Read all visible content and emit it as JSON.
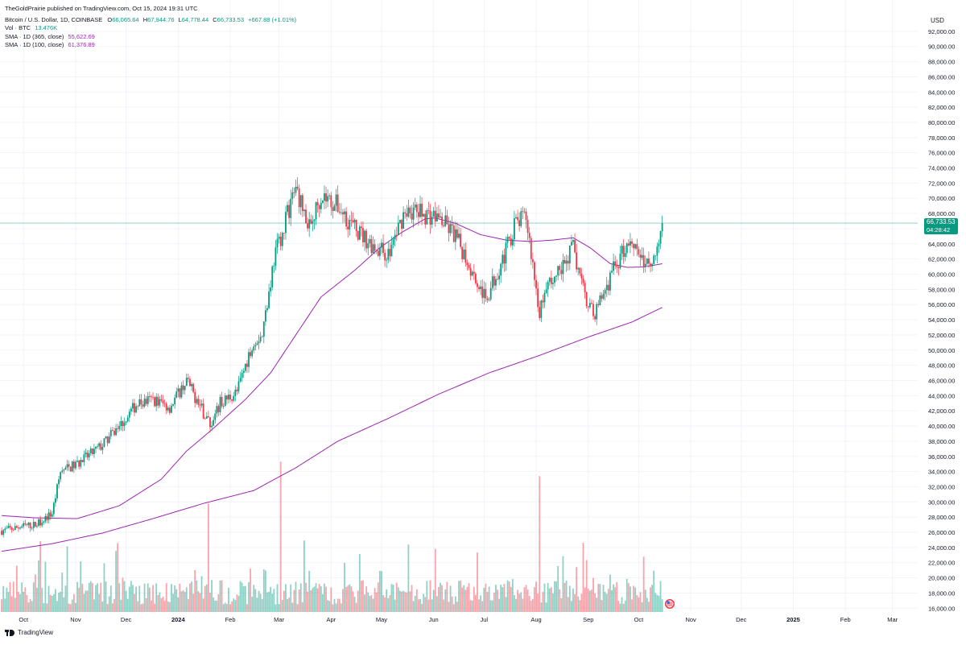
{
  "header": {
    "published": "TheGoldPrairie published on TradingView.com, Oct 15, 2024 19:31 UTC",
    "symbol": "Bitcoin / U.S. Dollar, 1D, COINBASE",
    "o_label": "O",
    "o_value": "66,065.64",
    "h_label": "H",
    "h_value": "67,944.76",
    "l_label": "L",
    "l_value": "64,778.44",
    "c_label": "C",
    "c_value": "66,733.53",
    "change": "+667.88 (+1.01%)",
    "vol_label": "Vol · BTC",
    "vol_value": "13.476K",
    "sma365_label": "SMA · 1D (365, close)",
    "sma365_value": "55,622.69",
    "sma100_label": "SMA · 1D (100, close)",
    "sma100_value": "61,376.89"
  },
  "footer": {
    "brand": "TradingView"
  },
  "colors": {
    "up": "#089981",
    "down": "#f23645",
    "sma": "#9c27b0",
    "grid": "#f0f3fa",
    "price_line": "#089981"
  },
  "chart_data": {
    "type": "candlestick",
    "title": "Bitcoin / U.S. Dollar, 1D, COINBASE",
    "currency": "USD",
    "ylim": [
      15500,
      94000
    ],
    "y_ticks": [
      16000,
      18000,
      20000,
      22000,
      24000,
      26000,
      28000,
      30000,
      32000,
      34000,
      36000,
      38000,
      40000,
      42000,
      44000,
      46000,
      48000,
      50000,
      52000,
      54000,
      56000,
      58000,
      60000,
      62000,
      64000,
      66000,
      68000,
      70000,
      72000,
      74000,
      76000,
      78000,
      80000,
      82000,
      84000,
      86000,
      88000,
      90000,
      92000
    ],
    "y_tick_labels": [
      "16,000.00",
      "18,000.00",
      "20,000.00",
      "22,000.00",
      "24,000.00",
      "26,000.00",
      "28,000.00",
      "30,000.00",
      "32,000.00",
      "34,000.00",
      "36,000.00",
      "38,000.00",
      "40,000.00",
      "42,000.00",
      "44,000.00",
      "46,000.00",
      "48,000.00",
      "50,000.00",
      "52,000.00",
      "54,000.00",
      "56,000.00",
      "58,000.00",
      "60,000.00",
      "62,000.00",
      "64,000.00",
      "66,000.00",
      "68,000.00",
      "70,000.00",
      "72,000.00",
      "74,000.00",
      "76,000.00",
      "78,000.00",
      "80,000.00",
      "82,000.00",
      "84,000.00",
      "86,000.00",
      "88,000.00",
      "90,000.00",
      "92,000.00"
    ],
    "x_ticks": [
      {
        "label": "Oct",
        "day": 13,
        "bold": false
      },
      {
        "label": "Nov",
        "day": 44,
        "bold": false
      },
      {
        "label": "Dec",
        "day": 74,
        "bold": false
      },
      {
        "label": "2024",
        "day": 105,
        "bold": true
      },
      {
        "label": "Feb",
        "day": 136,
        "bold": false
      },
      {
        "label": "Mar",
        "day": 165,
        "bold": false
      },
      {
        "label": "Apr",
        "day": 196,
        "bold": false
      },
      {
        "label": "May",
        "day": 226,
        "bold": false
      },
      {
        "label": "Jun",
        "day": 257,
        "bold": false
      },
      {
        "label": "Jul",
        "day": 287,
        "bold": false
      },
      {
        "label": "Aug",
        "day": 318,
        "bold": false
      },
      {
        "label": "Sep",
        "day": 349,
        "bold": false
      },
      {
        "label": "Oct",
        "day": 379,
        "bold": false
      },
      {
        "label": "Nov",
        "day": 410,
        "bold": false
      },
      {
        "label": "Dec",
        "day": 440,
        "bold": false
      },
      {
        "label": "2025",
        "day": 471,
        "bold": true
      },
      {
        "label": "Feb",
        "day": 502,
        "bold": false
      },
      {
        "label": "Mar",
        "day": 530,
        "bold": false
      }
    ],
    "x_range_days": [
      -1,
      545
    ],
    "last_day": 393,
    "current_price": 66733.53,
    "current_price_label": "66,733.53",
    "countdown": "04:28:42",
    "price_anchors": [
      [
        0,
        26200
      ],
      [
        13,
        26800
      ],
      [
        20,
        27000
      ],
      [
        30,
        28500
      ],
      [
        35,
        34000
      ],
      [
        45,
        35000
      ],
      [
        60,
        37500
      ],
      [
        70,
        40000
      ],
      [
        80,
        42800
      ],
      [
        90,
        43500
      ],
      [
        100,
        42500
      ],
      [
        110,
        46000
      ],
      [
        118,
        42500
      ],
      [
        125,
        40000
      ],
      [
        130,
        43000
      ],
      [
        140,
        44500
      ],
      [
        150,
        51500
      ],
      [
        155,
        52000
      ],
      [
        162,
        62000
      ],
      [
        170,
        68000
      ],
      [
        175,
        71500
      ],
      [
        183,
        66000
      ],
      [
        190,
        70500
      ],
      [
        200,
        69000
      ],
      [
        210,
        66000
      ],
      [
        220,
        64000
      ],
      [
        230,
        62500
      ],
      [
        240,
        68500
      ],
      [
        250,
        68000
      ],
      [
        260,
        67500
      ],
      [
        270,
        65000
      ],
      [
        280,
        60500
      ],
      [
        288,
        56500
      ],
      [
        295,
        60500
      ],
      [
        300,
        63000
      ],
      [
        305,
        66500
      ],
      [
        312,
        67500
      ],
      [
        320,
        55000
      ],
      [
        325,
        58500
      ],
      [
        332,
        60500
      ],
      [
        340,
        63500
      ],
      [
        345,
        58500
      ],
      [
        352,
        54500
      ],
      [
        358,
        57500
      ],
      [
        365,
        61000
      ],
      [
        372,
        64000
      ],
      [
        376,
        64500
      ],
      [
        383,
        61000
      ],
      [
        388,
        62500
      ],
      [
        393,
        66700
      ]
    ],
    "sma100": {
      "name": "SMA · 1D (100, close)",
      "value": "61,376.89",
      "anchors": [
        [
          0,
          28200
        ],
        [
          20,
          27900
        ],
        [
          45,
          27800
        ],
        [
          70,
          29500
        ],
        [
          95,
          33000
        ],
        [
          110,
          36700
        ],
        [
          125,
          39500
        ],
        [
          145,
          43500
        ],
        [
          160,
          47000
        ],
        [
          175,
          52000
        ],
        [
          190,
          57000
        ],
        [
          210,
          60500
        ],
        [
          225,
          63500
        ],
        [
          238,
          65500
        ],
        [
          252,
          67300
        ],
        [
          258,
          67400
        ],
        [
          270,
          66700
        ],
        [
          285,
          65200
        ],
        [
          300,
          64500
        ],
        [
          315,
          64300
        ],
        [
          328,
          64500
        ],
        [
          340,
          64800
        ],
        [
          350,
          63500
        ],
        [
          362,
          61400
        ],
        [
          372,
          60900
        ],
        [
          382,
          60950
        ],
        [
          393,
          61377
        ]
      ]
    },
    "sma365": {
      "name": "SMA · 1D (365, close)",
      "value": "55,622.69",
      "anchors": [
        [
          0,
          23500
        ],
        [
          30,
          24500
        ],
        [
          60,
          25900
        ],
        [
          90,
          27800
        ],
        [
          120,
          29800
        ],
        [
          150,
          31500
        ],
        [
          175,
          34500
        ],
        [
          200,
          38000
        ],
        [
          230,
          41000
        ],
        [
          260,
          44200
        ],
        [
          290,
          47000
        ],
        [
          320,
          49300
        ],
        [
          350,
          51800
        ],
        [
          375,
          53700
        ],
        [
          393,
          55623
        ]
      ]
    },
    "volume": {
      "max_scale": 38000,
      "spikes": [
        [
          166,
          35300
        ],
        [
          320,
          33400
        ],
        [
          123,
          29800
        ]
      ]
    }
  }
}
